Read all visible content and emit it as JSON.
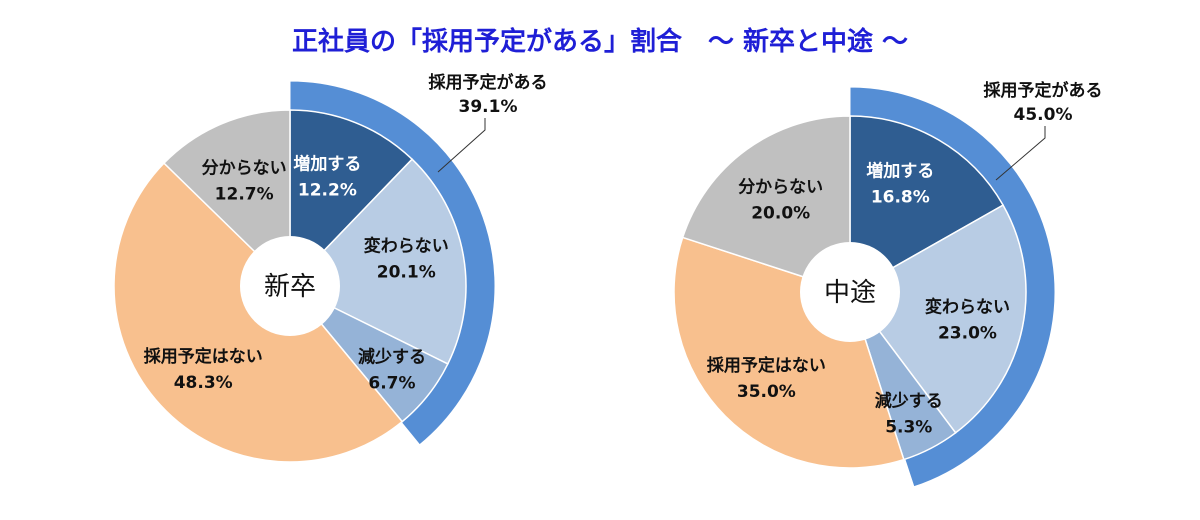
{
  "title": "正社員の「採用予定がある」割合　～ 新卒と中途 ～",
  "chart_data": [
    {
      "type": "pie",
      "center_label": "新卒",
      "slices": [
        {
          "name": "増加する",
          "value": 12.2,
          "value_label": "12.2%",
          "color": "#2f5d91"
        },
        {
          "name": "変わらない",
          "value": 20.1,
          "value_label": "20.1%",
          "color": "#b8cce4"
        },
        {
          "name": "減少する",
          "value": 6.7,
          "value_label": "6.7%",
          "color": "#95b3d7"
        },
        {
          "name": "採用予定はない",
          "value": 48.3,
          "value_label": "48.3%",
          "color": "#f8c08e"
        },
        {
          "name": "分からない",
          "value": 12.7,
          "value_label": "12.7%",
          "color": "#c0c0c0"
        }
      ],
      "outer_ring": {
        "name": "採用予定がある",
        "value": 39.1,
        "value_label": "39.1%",
        "color": "#558ed5"
      }
    },
    {
      "type": "pie",
      "center_label": "中途",
      "slices": [
        {
          "name": "増加する",
          "value": 16.8,
          "value_label": "16.8%",
          "color": "#2f5d91"
        },
        {
          "name": "変わらない",
          "value": 23.0,
          "value_label": "23.0%",
          "color": "#b8cce4"
        },
        {
          "name": "減少する",
          "value": 5.3,
          "value_label": "5.3%",
          "color": "#95b3d7"
        },
        {
          "name": "採用予定はない",
          "value": 35.0,
          "value_label": "35.0%",
          "color": "#f8c08e"
        },
        {
          "name": "分からない",
          "value": 20.0,
          "value_label": "20.0%",
          "color": "#c0c0c0"
        }
      ],
      "outer_ring": {
        "name": "採用予定がある",
        "value": 45.0,
        "value_label": "45.0%",
        "color": "#558ed5"
      }
    }
  ]
}
